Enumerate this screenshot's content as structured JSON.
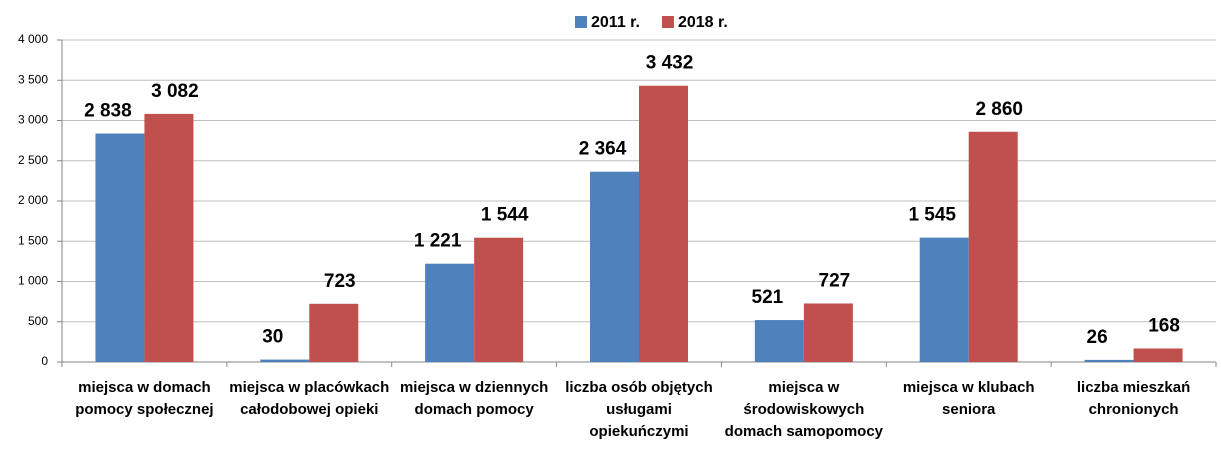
{
  "chart_data": {
    "type": "bar",
    "categories": [
      "miejsca w domach pomocy społecznej",
      "miejsca w placówkach całodobowej opieki",
      "miejsca w dziennych domach pomocy",
      "liczba osób objętych usługami opiekuńczymi",
      "miejsca w środowiskowych domach samopomocy",
      "miejsca w klubach seniora",
      "liczba mieszkań chronionych"
    ],
    "series": [
      {
        "name": "2011 r.",
        "color": "#4f81bd",
        "values": [
          2838,
          30,
          1221,
          2364,
          521,
          1545,
          26
        ],
        "value_labels": [
          "2 838",
          "30",
          "1 221",
          "2 364",
          "521",
          "1 545",
          "26"
        ]
      },
      {
        "name": "2018 r.",
        "color": "#c0504d",
        "values": [
          3082,
          723,
          1544,
          3432,
          727,
          2860,
          168
        ],
        "value_labels": [
          "3 082",
          "723",
          "1 544",
          "3 432",
          "727",
          "2 860",
          "168"
        ]
      }
    ],
    "ylim": [
      0,
      4000
    ],
    "yticks": [
      0,
      500,
      {
        "value": 1000,
        "label": "1 000"
      },
      {
        "value": 1500,
        "label": "1 500"
      },
      {
        "value": 2000,
        "label": "2 000"
      },
      {
        "value": 2500,
        "label": "2 500"
      },
      {
        "value": 3000,
        "label": "3 000"
      },
      {
        "value": 3500,
        "label": "3 500"
      },
      {
        "value": 4000,
        "label": "4 000"
      }
    ],
    "grid": true,
    "legend": "top"
  }
}
